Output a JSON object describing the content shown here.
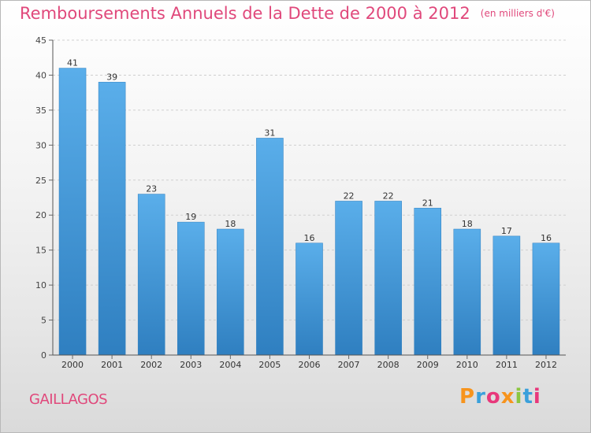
{
  "header": {
    "title": "Remboursements Annuels de la Dette de 2000 à 2012",
    "unit": "(en milliers d'€)"
  },
  "footer": {
    "commune": "GAILLAGOS",
    "brand": "Proxiti",
    "brand_colors": [
      "#f7941d",
      "#3aa0db",
      "#e8387b",
      "#f7941d",
      "#8cc63f",
      "#3aa0db",
      "#e8387b"
    ]
  },
  "chart_data": {
    "type": "bar",
    "categories": [
      "2000",
      "2001",
      "2002",
      "2003",
      "2004",
      "2005",
      "2006",
      "2007",
      "2008",
      "2009",
      "2010",
      "2011",
      "2012"
    ],
    "values": [
      41,
      39,
      23,
      19,
      18,
      31,
      16,
      22,
      22,
      21,
      18,
      17,
      16
    ],
    "data_labels": [
      "41",
      "39",
      "23",
      "19",
      "18",
      "31",
      "16",
      "22",
      "22",
      "21",
      "18",
      "17",
      "16"
    ],
    "title": "Remboursements Annuels de la Dette de 2000 à 2012",
    "xlabel": "",
    "ylabel": "",
    "ylim": [
      0,
      45
    ],
    "yticks": [
      0,
      5,
      10,
      15,
      20,
      25,
      30,
      35,
      40,
      45
    ],
    "grid": true,
    "bar_color": "#4b9fdd",
    "bar_color_top": "#5aaeea",
    "bar_color_bottom": "#2f7fc0",
    "label_color": "#333333",
    "title_color": "#e0487b"
  }
}
